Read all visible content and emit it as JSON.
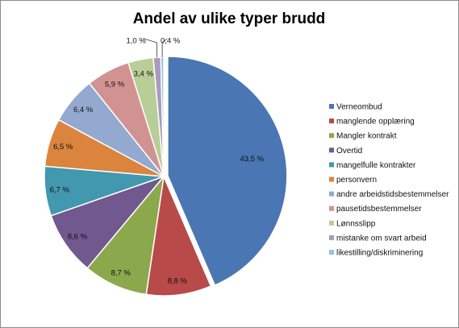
{
  "chart_data": {
    "type": "pie",
    "title": "Andel av ulike typer brudd",
    "legend_position": "right",
    "slices": [
      {
        "label": "Verneombud",
        "value": 43.5,
        "value_label": "43,5 %",
        "color": "#4a76b3"
      },
      {
        "label": "manglende opplæring",
        "value": 8.8,
        "value_label": "8,8 %",
        "color": "#b84a4a"
      },
      {
        "label": "Mangler kontrakt",
        "value": 8.7,
        "value_label": "8,7 %",
        "color": "#8ba84d"
      },
      {
        "label": "Overtid",
        "value": 8.6,
        "value_label": "8,6 %",
        "color": "#71588f"
      },
      {
        "label": "mangelfulle kontrakter",
        "value": 6.7,
        "value_label": "6,7 %",
        "color": "#4198af"
      },
      {
        "label": "personvern",
        "value": 6.5,
        "value_label": "6,5 %",
        "color": "#db843d"
      },
      {
        "label": "andre arbeidstidsbestemmelser",
        "value": 6.4,
        "value_label": "6,4 %",
        "color": "#93a9cf"
      },
      {
        "label": "pausetidsbestemmelser",
        "value": 5.9,
        "value_label": "5,9 %",
        "color": "#d19392"
      },
      {
        "label": "Lønnsslipp",
        "value": 3.4,
        "value_label": "3,4 %",
        "color": "#b9cd96"
      },
      {
        "label": "mistanke om svart arbeid",
        "value": 1.0,
        "value_label": "1,0 %",
        "color": "#a99bbd"
      },
      {
        "label": "likestilling/diskriminering",
        "value": 0.4,
        "value_label": "0,4 %",
        "color": "#92c5de"
      }
    ]
  }
}
